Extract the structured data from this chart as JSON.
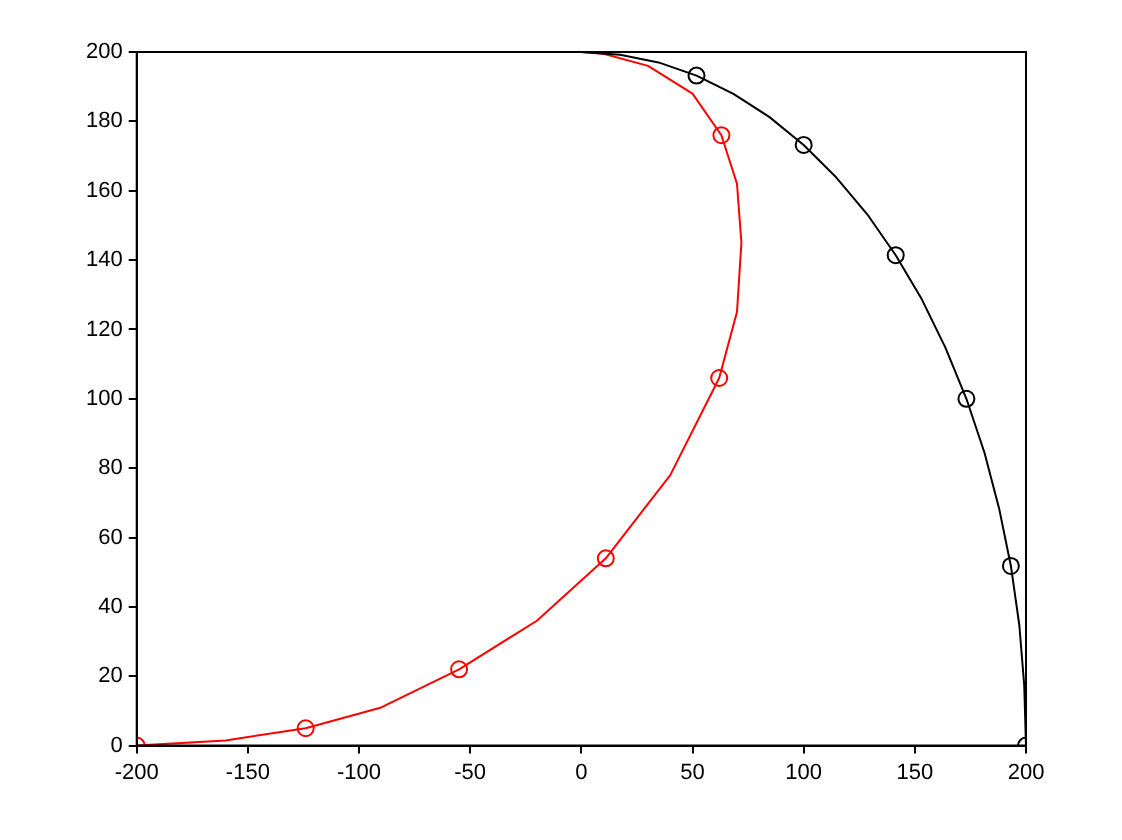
{
  "chart_data": {
    "type": "line",
    "xlim": [
      -200,
      200
    ],
    "xticks": [
      -200,
      -150,
      -100,
      -50,
      0,
      50,
      100,
      150,
      200
    ],
    "ylim": [
      0,
      200
    ],
    "yticks": [
      0,
      20,
      40,
      60,
      80,
      100,
      120,
      140,
      160,
      180,
      200
    ],
    "grid": false,
    "legend": false,
    "line_style": "solid",
    "series": [
      {
        "type": "line",
        "marker": "none",
        "color": "#000000",
        "x": [
          200,
          199.2,
          197,
          193.2,
          187.9,
          181.3,
          173.2,
          163.8,
          153.2,
          141.4,
          128.6,
          114.7,
          100,
          84.5,
          68.4,
          51.8,
          34.7,
          17.4,
          0
        ],
        "values": [
          0,
          17.4,
          34.7,
          51.8,
          68.4,
          84.5,
          100,
          114.7,
          128.6,
          141.4,
          153.2,
          163.8,
          173.2,
          181.3,
          187.9,
          193.2,
          197,
          199.2,
          200
        ]
      },
      {
        "type": "scatter",
        "marker": "circle",
        "color": "#000000",
        "x": [
          200,
          193.2,
          173.2,
          141.4,
          100,
          51.8
        ],
        "values": [
          0,
          51.8,
          100,
          141.4,
          173.2,
          193.2
        ]
      },
      {
        "type": "line",
        "marker": "none",
        "color": "#ff0000",
        "x": [
          -200,
          -160,
          -124,
          -90,
          -55,
          -20,
          11,
          40,
          62,
          70,
          72,
          70,
          63,
          50,
          30,
          10,
          0
        ],
        "values": [
          0,
          1.5,
          5,
          11,
          22,
          36,
          54,
          78,
          106,
          125,
          145,
          162,
          176,
          188,
          196,
          199.5,
          200
        ]
      },
      {
        "type": "scatter",
        "marker": "circle",
        "color": "#ff0000",
        "x": [
          -200,
          -124,
          -55,
          11,
          62,
          63
        ],
        "values": [
          0,
          5,
          22,
          54,
          106,
          176
        ]
      }
    ]
  }
}
